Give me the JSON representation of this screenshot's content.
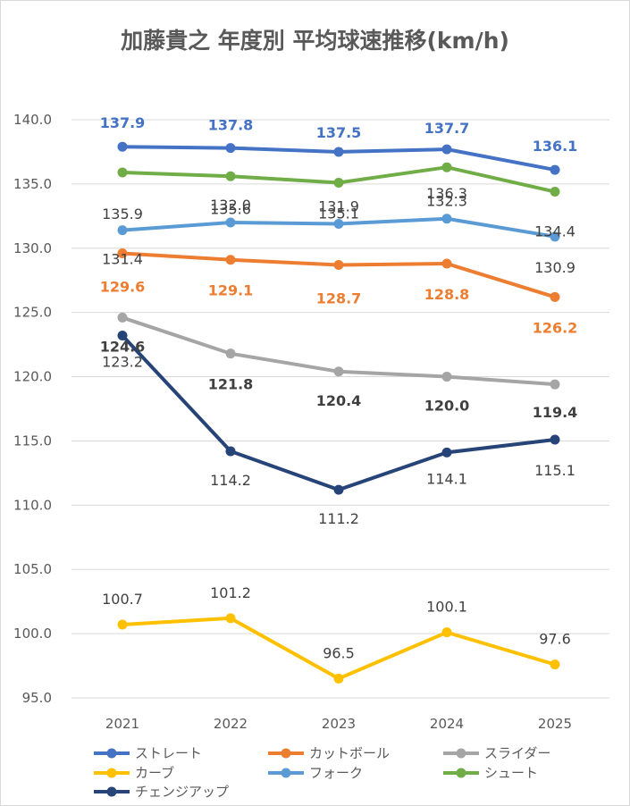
{
  "chart_data": {
    "type": "line",
    "title": "加藤貴之 年度別 平均球速推移(km/h)",
    "xlabel": "",
    "ylabel": "",
    "x": [
      "2021",
      "2022",
      "2023",
      "2024",
      "2025"
    ],
    "ylim": [
      95,
      140
    ],
    "yticks": [
      "95.0",
      "100.0",
      "105.0",
      "110.0",
      "115.0",
      "120.0",
      "125.0",
      "130.0",
      "135.0",
      "140.0"
    ],
    "grid": true,
    "legend_position": "bottom",
    "series": [
      {
        "name": "ストレート",
        "color": "#4472C4",
        "label_color": "#4472C4",
        "label_bold": true,
        "values": [
          137.9,
          137.8,
          137.5,
          137.7,
          136.1
        ]
      },
      {
        "name": "カットボール",
        "color": "#ED7D31",
        "label_color": "#ED7D31",
        "label_bold": true,
        "values": [
          129.6,
          129.1,
          128.7,
          128.8,
          126.2
        ]
      },
      {
        "name": "スライダー",
        "color": "#A5A5A5",
        "label_color": "#404040",
        "label_bold": true,
        "values": [
          124.6,
          121.8,
          120.4,
          120.0,
          119.4
        ]
      },
      {
        "name": "カーブ",
        "color": "#FFC000",
        "label_color": "#404040",
        "label_bold": false,
        "values": [
          100.7,
          101.2,
          96.5,
          100.1,
          97.6
        ]
      },
      {
        "name": "フォーク",
        "color": "#5B9BD5",
        "label_color": "#404040",
        "label_bold": false,
        "values": [
          131.4,
          132.0,
          131.9,
          132.3,
          130.9
        ]
      },
      {
        "name": "シュート",
        "color": "#70AD47",
        "label_color": "#404040",
        "label_bold": false,
        "values": [
          135.9,
          135.6,
          135.1,
          136.3,
          134.4
        ]
      },
      {
        "name": "チェンジアップ",
        "color": "#264478",
        "label_color": "#404040",
        "label_bold": false,
        "values": [
          123.2,
          114.2,
          111.2,
          114.1,
          115.1
        ]
      }
    ]
  }
}
